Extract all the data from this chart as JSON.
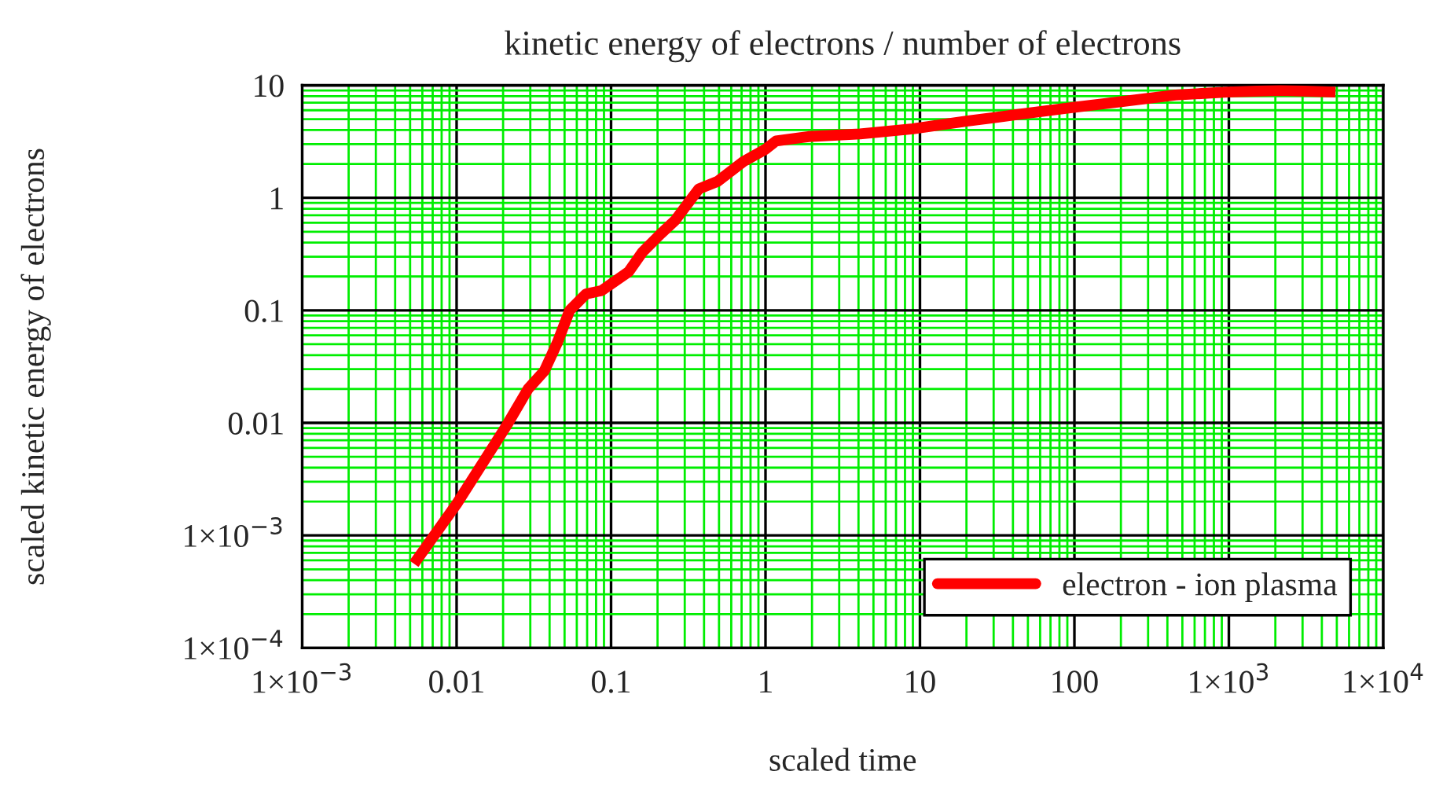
{
  "chart_data": {
    "type": "line",
    "title": "kinetic energy of electrons / number of electrons",
    "xlabel": "scaled time",
    "ylabel": "scaled kinetic energy of electrons",
    "log": "xy",
    "grid": true,
    "legend": "bottom right",
    "line_style": "solid",
    "marker": "none",
    "xlim": [
      0.001,
      10000
    ],
    "ylim": [
      0.0001,
      10
    ],
    "xticks": [
      {
        "value": 0.001,
        "label": "1×10$^{−3}$"
      },
      {
        "value": 0.01,
        "label": "0.01"
      },
      {
        "value": 0.1,
        "label": "0.1"
      },
      {
        "value": 1,
        "label": "1"
      },
      {
        "value": 10,
        "label": "10"
      },
      {
        "value": 100,
        "label": "100"
      },
      {
        "value": 1000,
        "label": "1×10$^{3}$"
      },
      {
        "value": 10000,
        "label": "1×10$^{4}$"
      },
      {
        "value": 0.002,
        "label": null
      },
      {
        "value": 0.003,
        "label": null
      },
      {
        "value": 0.004,
        "label": null
      },
      {
        "value": 0.005,
        "label": null
      },
      {
        "value": 0.006,
        "label": null
      },
      {
        "value": 0.007,
        "label": null
      },
      {
        "value": 0.008,
        "label": null
      },
      {
        "value": 0.009,
        "label": null
      },
      {
        "value": 0.02,
        "label": null
      },
      {
        "value": 0.03,
        "label": null
      },
      {
        "value": 0.04,
        "label": null
      },
      {
        "value": 0.05,
        "label": null
      },
      {
        "value": 0.06,
        "label": null
      },
      {
        "value": 0.07,
        "label": null
      },
      {
        "value": 0.08,
        "label": null
      },
      {
        "value": 0.09,
        "label": null
      },
      {
        "value": 0.2,
        "label": null
      },
      {
        "value": 0.3,
        "label": null
      },
      {
        "value": 0.4,
        "label": null
      },
      {
        "value": 0.5,
        "label": null
      },
      {
        "value": 0.6,
        "label": null
      },
      {
        "value": 0.7,
        "label": null
      },
      {
        "value": 0.8,
        "label": null
      },
      {
        "value": 0.9,
        "label": null
      },
      {
        "value": 2,
        "label": null
      },
      {
        "value": 3,
        "label": null
      },
      {
        "value": 4,
        "label": null
      },
      {
        "value": 5,
        "label": null
      },
      {
        "value": 6,
        "label": null
      },
      {
        "value": 7,
        "label": null
      },
      {
        "value": 8,
        "label": null
      },
      {
        "value": 9,
        "label": null
      },
      {
        "value": 20,
        "label": null
      },
      {
        "value": 30,
        "label": null
      },
      {
        "value": 40,
        "label": null
      },
      {
        "value": 50,
        "label": null
      },
      {
        "value": 60,
        "label": null
      },
      {
        "value": 70,
        "label": null
      },
      {
        "value": 80,
        "label": null
      },
      {
        "value": 90,
        "label": null
      },
      {
        "value": 200,
        "label": null
      },
      {
        "value": 300,
        "label": null
      },
      {
        "value": 400,
        "label": null
      },
      {
        "value": 500,
        "label": null
      },
      {
        "value": 600,
        "label": null
      },
      {
        "value": 700,
        "label": null
      },
      {
        "value": 800,
        "label": null
      },
      {
        "value": 900,
        "label": null
      },
      {
        "value": 2000,
        "label": null
      },
      {
        "value": 3000,
        "label": null
      },
      {
        "value": 4000,
        "label": null
      },
      {
        "value": 5000,
        "label": null
      },
      {
        "value": 6000,
        "label": null
      },
      {
        "value": 7000,
        "label": null
      },
      {
        "value": 8000,
        "label": null
      },
      {
        "value": 9000,
        "label": null
      }
    ],
    "yticks": [
      {
        "value": 0.0001,
        "label": "1×10$^{−4}$"
      },
      {
        "value": 0.001,
        "label": "1×10$^{−3}$"
      },
      {
        "value": 0.01,
        "label": "0.01"
      },
      {
        "value": 0.1,
        "label": "0.1"
      },
      {
        "value": 1,
        "label": "1"
      },
      {
        "value": 10,
        "label": "10"
      },
      {
        "value": 0.0002,
        "label": null
      },
      {
        "value": 0.0003,
        "label": null
      },
      {
        "value": 0.0004,
        "label": null
      },
      {
        "value": 0.0005,
        "label": null
      },
      {
        "value": 0.0006,
        "label": null
      },
      {
        "value": 0.0007,
        "label": null
      },
      {
        "value": 0.0008,
        "label": null
      },
      {
        "value": 0.0009,
        "label": null
      },
      {
        "value": 0.002,
        "label": null
      },
      {
        "value": 0.003,
        "label": null
      },
      {
        "value": 0.004,
        "label": null
      },
      {
        "value": 0.005,
        "label": null
      },
      {
        "value": 0.006,
        "label": null
      },
      {
        "value": 0.007,
        "label": null
      },
      {
        "value": 0.008,
        "label": null
      },
      {
        "value": 0.009,
        "label": null
      },
      {
        "value": 0.02,
        "label": null
      },
      {
        "value": 0.03,
        "label": null
      },
      {
        "value": 0.04,
        "label": null
      },
      {
        "value": 0.05,
        "label": null
      },
      {
        "value": 0.06,
        "label": null
      },
      {
        "value": 0.07,
        "label": null
      },
      {
        "value": 0.08,
        "label": null
      },
      {
        "value": 0.09,
        "label": null
      },
      {
        "value": 0.2,
        "label": null
      },
      {
        "value": 0.3,
        "label": null
      },
      {
        "value": 0.4,
        "label": null
      },
      {
        "value": 0.5,
        "label": null
      },
      {
        "value": 0.6,
        "label": null
      },
      {
        "value": 0.7,
        "label": null
      },
      {
        "value": 0.8,
        "label": null
      },
      {
        "value": 0.9,
        "label": null
      },
      {
        "value": 2,
        "label": null
      },
      {
        "value": 3,
        "label": null
      },
      {
        "value": 4,
        "label": null
      },
      {
        "value": 5,
        "label": null
      },
      {
        "value": 6,
        "label": null
      },
      {
        "value": 7,
        "label": null
      },
      {
        "value": 8,
        "label": null
      },
      {
        "value": 9,
        "label": null
      }
    ],
    "series": [
      {
        "name": "electron - ion plasma",
        "color": "#ff0000",
        "x": [
          0.0053,
          0.01,
          0.021,
          0.029,
          0.037,
          0.045,
          0.054,
          0.069,
          0.087,
          0.13,
          0.16,
          0.21,
          0.26,
          0.31,
          0.37,
          0.49,
          0.72,
          1.0,
          1.17,
          1.9,
          4.1,
          9,
          20,
          43,
          94,
          210,
          450,
          980,
          2150,
          4900
        ],
        "values": [
          0.00056,
          0.0019,
          0.0094,
          0.02,
          0.029,
          0.052,
          0.1,
          0.14,
          0.15,
          0.22,
          0.33,
          0.48,
          0.63,
          0.87,
          1.2,
          1.4,
          2.1,
          2.7,
          3.2,
          3.5,
          3.7,
          4.1,
          4.8,
          5.5,
          6.3,
          7.2,
          8.2,
          8.7,
          9.0,
          8.7
        ]
      }
    ]
  }
}
